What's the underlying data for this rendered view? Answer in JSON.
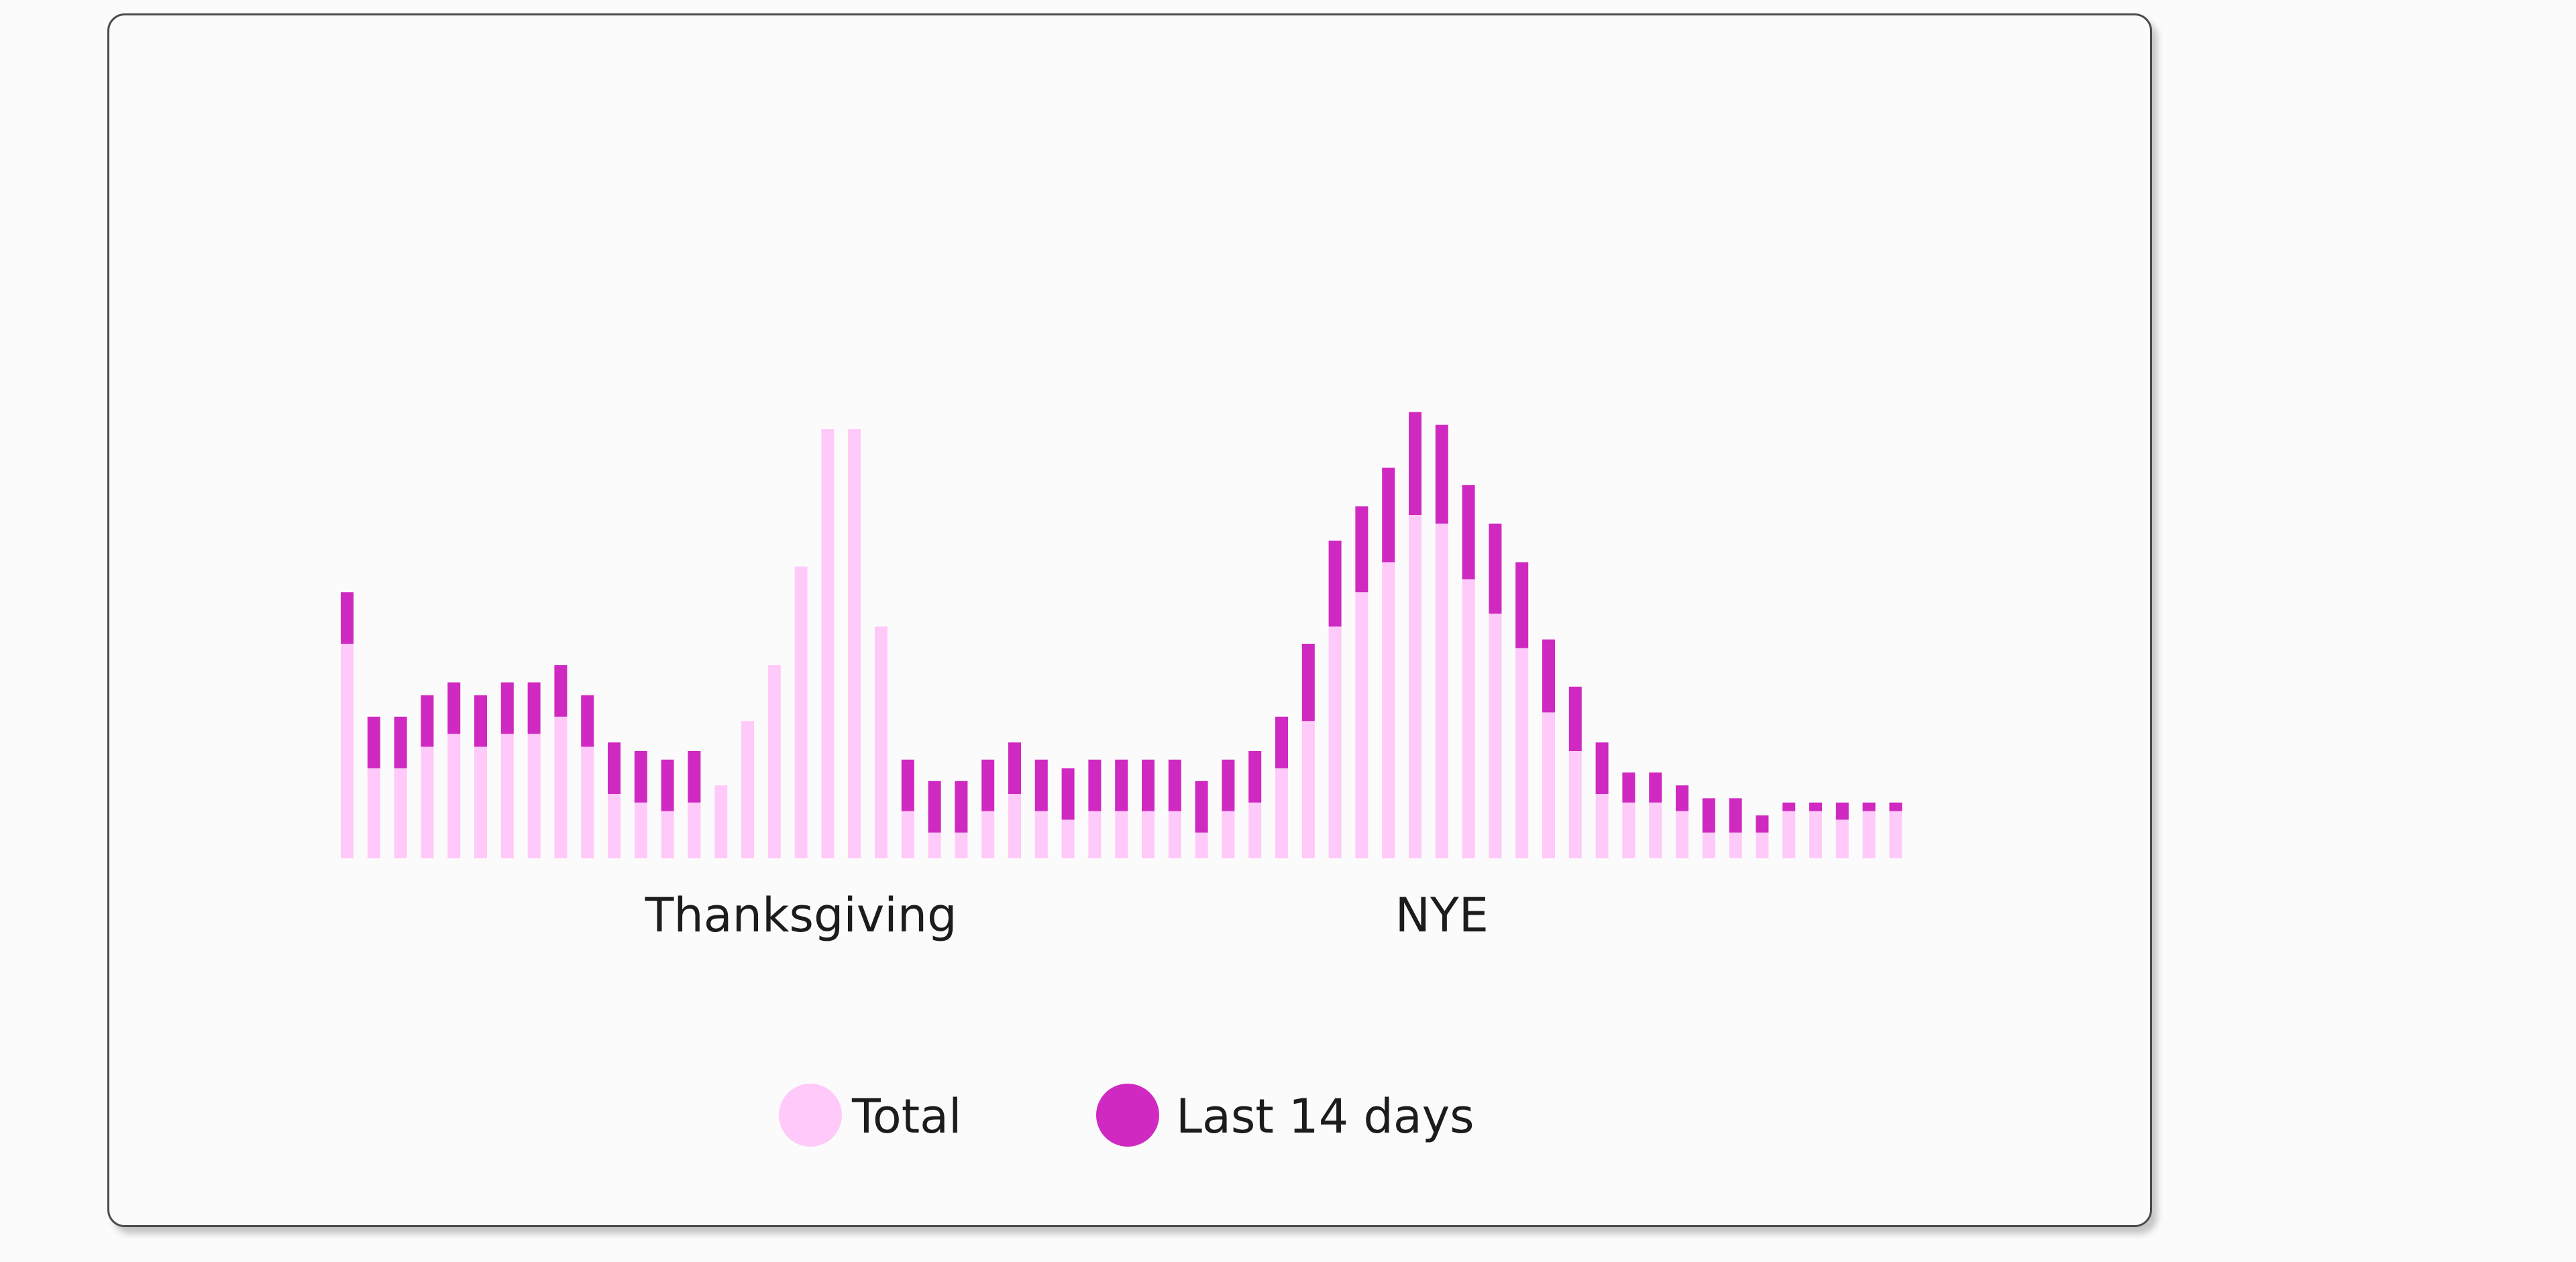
{
  "colors": {
    "total": "#ffc9f9",
    "recent": "#cf29c1",
    "card_border": "#4a4a4a",
    "text": "#1c1c1c"
  },
  "legend": {
    "total_label": "Total",
    "recent_label": "Last 14 days"
  },
  "chart_data": {
    "type": "bar",
    "stacked": true,
    "x_labels": [
      "Thanksgiving",
      "NYE"
    ],
    "annotation_indices": [
      17,
      41
    ],
    "ylim": [
      0,
      100
    ],
    "series": [
      {
        "name": "Total",
        "values": [
          50,
          21,
          21,
          26,
          29,
          26,
          29,
          29,
          33,
          26,
          15,
          13,
          11,
          13,
          17,
          32,
          45,
          68,
          100,
          100,
          54,
          11,
          6,
          6,
          11,
          15,
          11,
          9,
          11,
          11,
          11,
          11,
          6,
          11,
          13,
          21,
          32,
          54,
          62,
          69,
          80,
          78,
          65,
          57,
          49,
          34,
          25,
          15,
          13,
          13,
          11,
          6,
          6,
          6,
          11,
          11,
          9,
          11,
          11
        ]
      },
      {
        "name": "Last 14 days",
        "values": [
          12,
          12,
          12,
          12,
          12,
          12,
          12,
          12,
          12,
          12,
          12,
          12,
          12,
          12,
          0,
          0,
          0,
          0,
          0,
          0,
          0,
          12,
          12,
          12,
          12,
          12,
          12,
          12,
          12,
          12,
          12,
          12,
          12,
          12,
          12,
          12,
          18,
          20,
          20,
          22,
          24,
          23,
          22,
          21,
          20,
          17,
          15,
          12,
          7,
          7,
          6,
          8,
          8,
          4,
          2,
          2,
          4,
          2,
          2
        ]
      }
    ]
  }
}
